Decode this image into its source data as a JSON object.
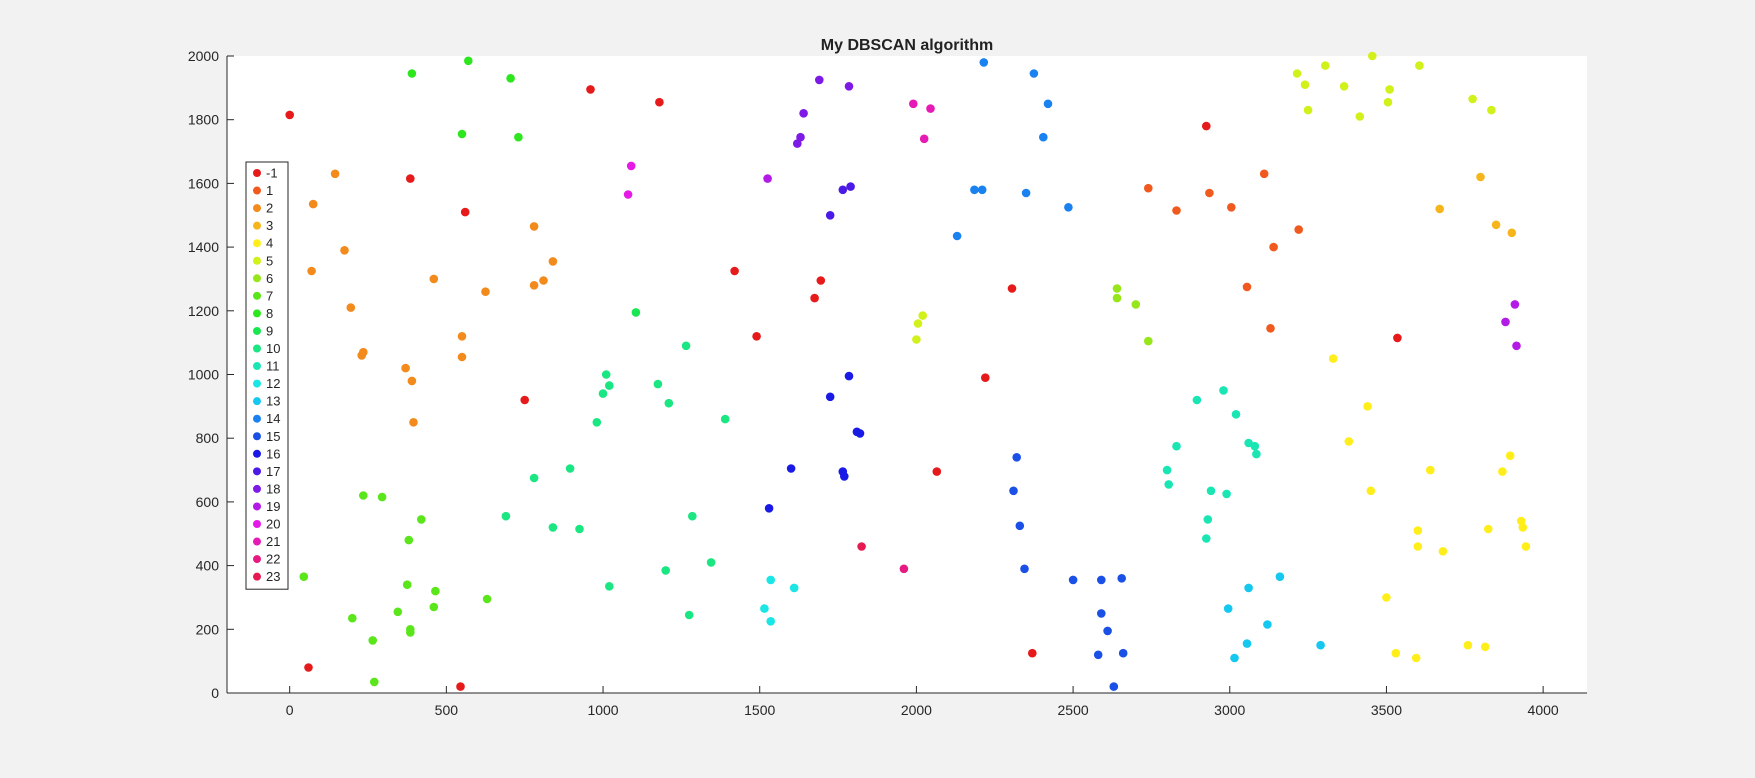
{
  "figure": {
    "background": "#f2f2f2",
    "axes_background": "#ffffff"
  },
  "chart_data": {
    "type": "scatter",
    "title": "My DBSCAN algorithm",
    "xlabel": "",
    "ylabel": "",
    "xlim": [
      -200,
      4140
    ],
    "ylim": [
      0,
      2000
    ],
    "xticks": [
      0,
      500,
      1000,
      1500,
      2000,
      2500,
      3000,
      3500,
      4000
    ],
    "yticks": [
      0,
      200,
      400,
      600,
      800,
      1000,
      1200,
      1400,
      1600,
      1800,
      2000
    ],
    "grid": false,
    "legend_location": "left-middle",
    "series": [
      {
        "name": "-1",
        "color": "#e61a1a",
        "points": [
          [
            0,
            1815
          ],
          [
            60,
            80
          ],
          [
            385,
            1615
          ],
          [
            560,
            1510
          ],
          [
            545,
            20
          ],
          [
            750,
            920
          ],
          [
            960,
            1895
          ],
          [
            1180,
            1855
          ],
          [
            1420,
            1325
          ],
          [
            1490,
            1120
          ],
          [
            1675,
            1240
          ],
          [
            1695,
            1295
          ],
          [
            2065,
            695
          ],
          [
            2220,
            990
          ],
          [
            2305,
            1270
          ],
          [
            2370,
            125
          ],
          [
            2925,
            1780
          ],
          [
            3535,
            1115
          ]
        ]
      },
      {
        "name": "1",
        "color": "#f05a1e",
        "points": [
          [
            2740,
            1585
          ],
          [
            2830,
            1515
          ],
          [
            2935,
            1570
          ],
          [
            3005,
            1525
          ],
          [
            3055,
            1275
          ],
          [
            3110,
            1630
          ],
          [
            3130,
            1145
          ],
          [
            3140,
            1400
          ],
          [
            3220,
            1455
          ]
        ]
      },
      {
        "name": "2",
        "color": "#f28a1c",
        "points": [
          [
            70,
            1325
          ],
          [
            75,
            1535
          ],
          [
            145,
            1630
          ],
          [
            175,
            1390
          ],
          [
            195,
            1210
          ],
          [
            230,
            1060
          ],
          [
            235,
            1070
          ],
          [
            370,
            1020
          ],
          [
            390,
            980
          ],
          [
            395,
            850
          ],
          [
            460,
            1300
          ],
          [
            550,
            1120
          ],
          [
            550,
            1055
          ],
          [
            625,
            1260
          ],
          [
            780,
            1280
          ],
          [
            780,
            1465
          ],
          [
            810,
            1295
          ],
          [
            840,
            1355
          ]
        ]
      },
      {
        "name": "3",
        "color": "#f7b51c",
        "points": [
          [
            3670,
            1520
          ],
          [
            3800,
            1620
          ],
          [
            3850,
            1470
          ],
          [
            3900,
            1445
          ]
        ]
      },
      {
        "name": "4",
        "color": "#ffee1a",
        "points": [
          [
            3330,
            1050
          ],
          [
            3380,
            790
          ],
          [
            3440,
            900
          ],
          [
            3450,
            635
          ],
          [
            3500,
            300
          ],
          [
            3530,
            125
          ],
          [
            3595,
            110
          ],
          [
            3600,
            510
          ],
          [
            3600,
            460
          ],
          [
            3640,
            700
          ],
          [
            3680,
            445
          ],
          [
            3760,
            150
          ],
          [
            3815,
            145
          ],
          [
            3825,
            515
          ],
          [
            3870,
            695
          ],
          [
            3895,
            745
          ],
          [
            3930,
            540
          ],
          [
            3935,
            520
          ],
          [
            3945,
            460
          ]
        ]
      },
      {
        "name": "5",
        "color": "#d2f01a",
        "points": [
          [
            2000,
            1110
          ],
          [
            2005,
            1160
          ],
          [
            2020,
            1185
          ],
          [
            3215,
            1945
          ],
          [
            3240,
            1910
          ],
          [
            3250,
            1830
          ],
          [
            3305,
            1970
          ],
          [
            3365,
            1905
          ],
          [
            3415,
            1810
          ],
          [
            3455,
            2000
          ],
          [
            3505,
            1855
          ],
          [
            3510,
            1895
          ],
          [
            3605,
            1970
          ],
          [
            3775,
            1865
          ],
          [
            3835,
            1830
          ]
        ]
      },
      {
        "name": "6",
        "color": "#96e61a",
        "points": [
          [
            2640,
            1270
          ],
          [
            2640,
            1240
          ],
          [
            2700,
            1220
          ],
          [
            2740,
            1105
          ]
        ]
      },
      {
        "name": "7",
        "color": "#5ae61a",
        "points": [
          [
            45,
            365
          ],
          [
            200,
            235
          ],
          [
            235,
            620
          ],
          [
            265,
            165
          ],
          [
            270,
            35
          ],
          [
            295,
            615
          ],
          [
            345,
            255
          ],
          [
            375,
            340
          ],
          [
            380,
            480
          ],
          [
            385,
            200
          ],
          [
            385,
            190
          ],
          [
            420,
            545
          ],
          [
            460,
            270
          ],
          [
            465,
            320
          ],
          [
            630,
            295
          ]
        ]
      },
      {
        "name": "8",
        "color": "#2ee61e",
        "points": [
          [
            390,
            1945
          ],
          [
            550,
            1755
          ],
          [
            570,
            1985
          ],
          [
            705,
            1930
          ],
          [
            730,
            1745
          ]
        ]
      },
      {
        "name": "9",
        "color": "#1ae650",
        "points": [
          [
            1105,
            1195
          ]
        ]
      },
      {
        "name": "10",
        "color": "#1ae682",
        "points": [
          [
            690,
            555
          ],
          [
            780,
            675
          ],
          [
            840,
            520
          ],
          [
            895,
            705
          ],
          [
            925,
            515
          ],
          [
            980,
            850
          ],
          [
            1000,
            940
          ],
          [
            1010,
            1000
          ],
          [
            1020,
            965
          ],
          [
            1020,
            335
          ],
          [
            1175,
            970
          ],
          [
            1200,
            385
          ],
          [
            1210,
            910
          ],
          [
            1265,
            1090
          ],
          [
            1275,
            245
          ],
          [
            1285,
            555
          ],
          [
            1345,
            410
          ],
          [
            1390,
            860
          ]
        ]
      },
      {
        "name": "11",
        "color": "#1ae6b4",
        "points": [
          [
            2800,
            700
          ],
          [
            2805,
            655
          ],
          [
            2830,
            775
          ],
          [
            2895,
            920
          ],
          [
            2925,
            485
          ],
          [
            2930,
            545
          ],
          [
            2940,
            635
          ],
          [
            2980,
            950
          ],
          [
            2990,
            625
          ],
          [
            3020,
            875
          ],
          [
            3060,
            785
          ],
          [
            3080,
            775
          ],
          [
            3085,
            750
          ]
        ]
      },
      {
        "name": "12",
        "color": "#1ae6e6",
        "points": [
          [
            1515,
            265
          ],
          [
            1535,
            355
          ],
          [
            1535,
            225
          ],
          [
            1610,
            330
          ]
        ]
      },
      {
        "name": "13",
        "color": "#14c8f0",
        "points": [
          [
            2995,
            265
          ],
          [
            3015,
            110
          ],
          [
            3055,
            155
          ],
          [
            3060,
            330
          ],
          [
            3120,
            215
          ],
          [
            3160,
            365
          ],
          [
            3290,
            150
          ]
        ]
      },
      {
        "name": "14",
        "color": "#1a82f0",
        "points": [
          [
            2130,
            1435
          ],
          [
            2185,
            1580
          ],
          [
            2210,
            1580
          ],
          [
            2215,
            1980
          ],
          [
            2350,
            1570
          ],
          [
            2375,
            1945
          ],
          [
            2405,
            1745
          ],
          [
            2420,
            1850
          ],
          [
            2485,
            1525
          ]
        ]
      },
      {
        "name": "15",
        "color": "#1a50e6",
        "points": [
          [
            2320,
            740
          ],
          [
            2330,
            525
          ],
          [
            2345,
            390
          ],
          [
            2500,
            355
          ],
          [
            2590,
            355
          ],
          [
            2655,
            360
          ],
          [
            2310,
            635
          ],
          [
            2590,
            250
          ],
          [
            2610,
            195
          ],
          [
            2580,
            120
          ],
          [
            2630,
            20
          ],
          [
            2660,
            125
          ]
        ]
      },
      {
        "name": "16",
        "color": "#1a1ae6",
        "points": [
          [
            1530,
            580
          ],
          [
            1600,
            705
          ],
          [
            1725,
            930
          ],
          [
            1765,
            695
          ],
          [
            1770,
            680
          ],
          [
            1785,
            995
          ],
          [
            1810,
            820
          ],
          [
            1820,
            815
          ]
        ]
      },
      {
        "name": "17",
        "color": "#4b1ae6",
        "points": [
          [
            1725,
            1500
          ],
          [
            1765,
            1580
          ],
          [
            1790,
            1590
          ]
        ]
      },
      {
        "name": "18",
        "color": "#7d1ae6",
        "points": [
          [
            1620,
            1725
          ],
          [
            1630,
            1745
          ],
          [
            1640,
            1820
          ],
          [
            1690,
            1925
          ],
          [
            1785,
            1905
          ]
        ]
      },
      {
        "name": "19",
        "color": "#b41ae6",
        "points": [
          [
            1525,
            1615
          ],
          [
            3880,
            1165
          ],
          [
            3910,
            1220
          ],
          [
            3915,
            1090
          ]
        ]
      },
      {
        "name": "20",
        "color": "#e61ae6",
        "points": [
          [
            1080,
            1565
          ],
          [
            1090,
            1655
          ]
        ]
      },
      {
        "name": "21",
        "color": "#e61ab4",
        "points": [
          [
            1990,
            1850
          ],
          [
            2025,
            1740
          ],
          [
            2045,
            1835
          ]
        ]
      },
      {
        "name": "22",
        "color": "#e61a82",
        "points": [
          [
            1960,
            390
          ]
        ]
      },
      {
        "name": "23",
        "color": "#e61a50",
        "points": [
          [
            1825,
            460
          ]
        ]
      }
    ]
  }
}
